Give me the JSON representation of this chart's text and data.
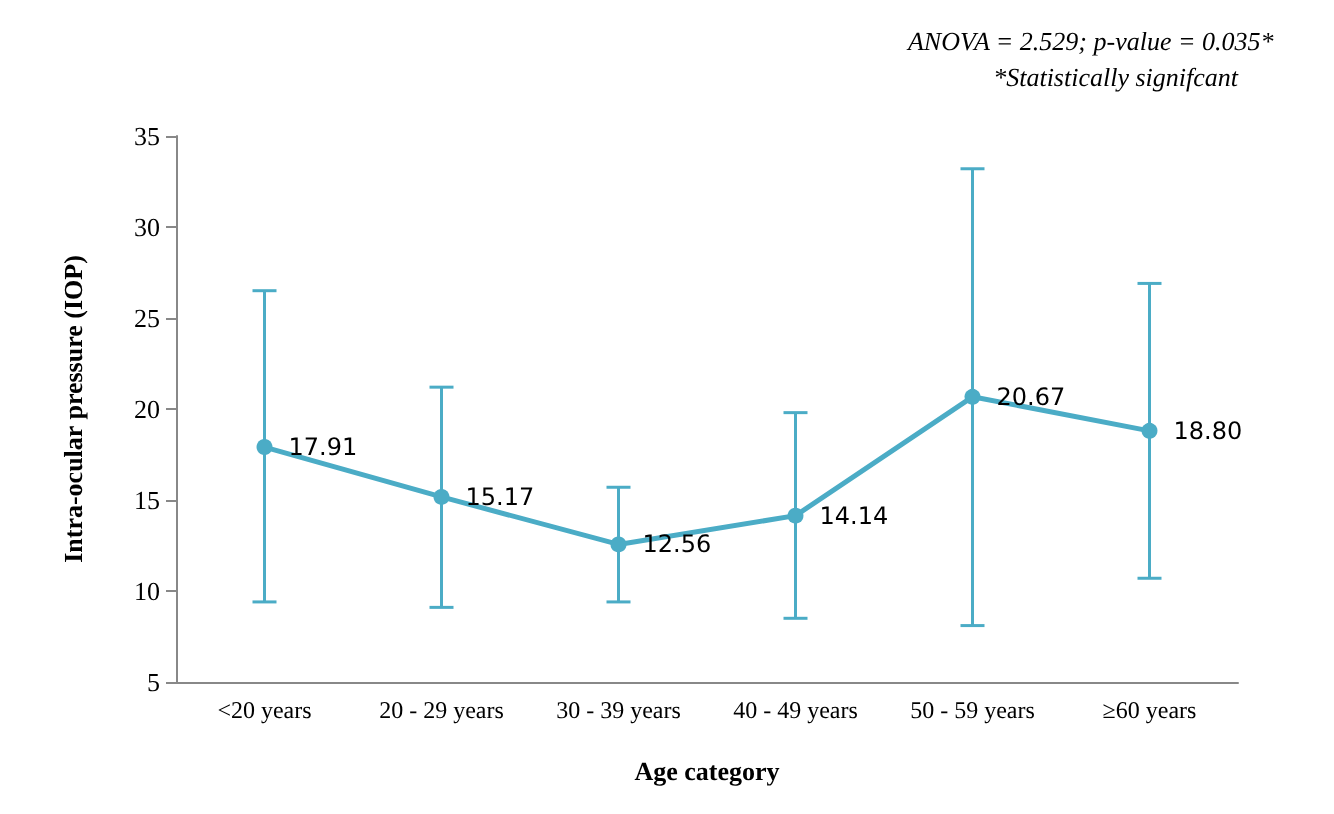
{
  "chart_data": {
    "type": "line",
    "xlabel": "Age category",
    "ylabel": "Intra-ocular pressure (IOP)",
    "categories": [
      "<20 years",
      "20 - 29 years",
      "30 - 39 years",
      "40 - 49 years",
      "50 - 59 years",
      "≥60 years"
    ],
    "series": [
      {
        "color": "#4bacc6",
        "values": [
          17.91,
          15.17,
          12.56,
          14.14,
          20.67,
          18.8
        ],
        "value_labels": [
          "17.91",
          "15.17",
          "12.56",
          "14.14",
          "20.67",
          "18.80"
        ],
        "errors": [
          [
            9.4,
            26.5
          ],
          [
            9.1,
            21.2
          ],
          [
            9.4,
            15.7
          ],
          [
            8.5,
            19.8
          ],
          [
            8.1,
            33.2
          ],
          [
            10.7,
            26.9
          ]
        ]
      }
    ],
    "ylim": [
      5,
      35
    ],
    "yticks": [
      5,
      10,
      15,
      20,
      25,
      30,
      35
    ],
    "grid": false,
    "marker": "circle",
    "line_style": "solid",
    "annotations": [
      "ANOVA = 2.529; p-value = 0.035*",
      "*Statistically signifcant"
    ]
  }
}
